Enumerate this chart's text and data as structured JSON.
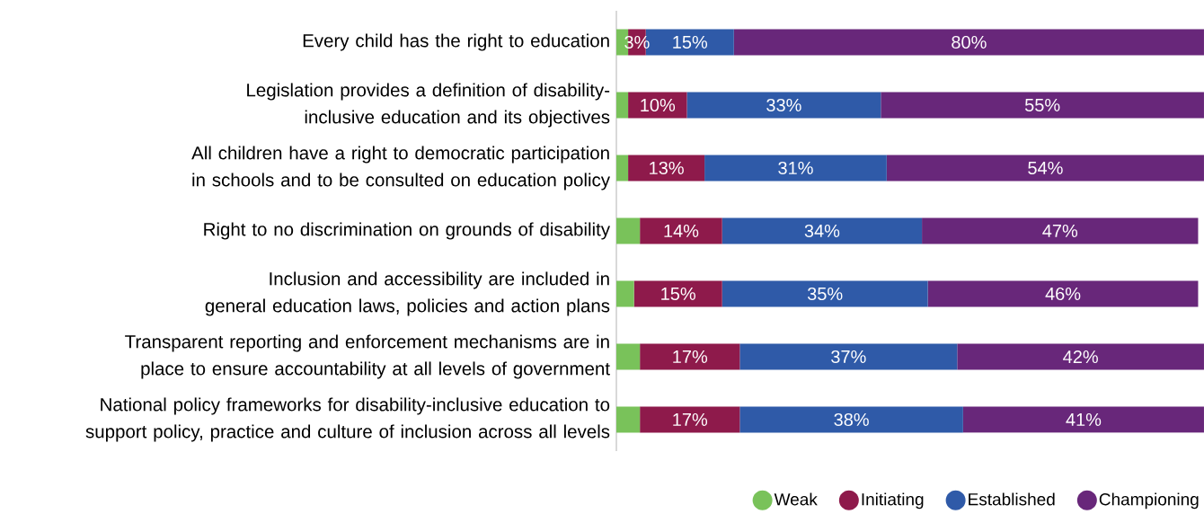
{
  "chart_data": {
    "type": "bar",
    "orientation": "horizontal",
    "stacked": true,
    "categories": [
      "Every child has the right to education",
      "Legislation provides a definition of disability-inclusive education and its objectives",
      "All children have a right to democratic participation in schools and to be consulted on education policy",
      "Right to no discrimination on grounds of disability",
      "Inclusion and accessibility are included in general education laws, policies and action plans",
      "Transparent reporting and enforcement mechanisms are in place to ensure accountability at all levels of government",
      "National policy frameworks for disability-inclusive education to support policy, practice and culture of inclusion across all levels"
    ],
    "series": [
      {
        "name": "Weak",
        "color": "#79c25a",
        "values": [
          2,
          2,
          2,
          4,
          3,
          4,
          4
        ],
        "value_labels": [
          null,
          null,
          null,
          null,
          null,
          null,
          null
        ]
      },
      {
        "name": "Initiating",
        "color": "#8e1a4b",
        "values": [
          3,
          10,
          13,
          14,
          15,
          17,
          17
        ],
        "value_labels": [
          "3%",
          "10%",
          "13%",
          "14%",
          "15%",
          "17%",
          "17%"
        ]
      },
      {
        "name": "Established",
        "color": "#2f5aa8",
        "values": [
          15,
          33,
          31,
          34,
          35,
          37,
          38
        ],
        "value_labels": [
          "15%",
          "33%",
          "31%",
          "34%",
          "35%",
          "37%",
          "38%"
        ]
      },
      {
        "name": "Championing",
        "color": "#68277a",
        "values": [
          80,
          55,
          54,
          47,
          46,
          42,
          41
        ],
        "value_labels": [
          "80%",
          "55%",
          "54%",
          "47%",
          "46%",
          "42%",
          "41%"
        ]
      }
    ],
    "xlim": [
      0,
      100
    ],
    "tick_labels": "y",
    "legend": "bottom right"
  }
}
